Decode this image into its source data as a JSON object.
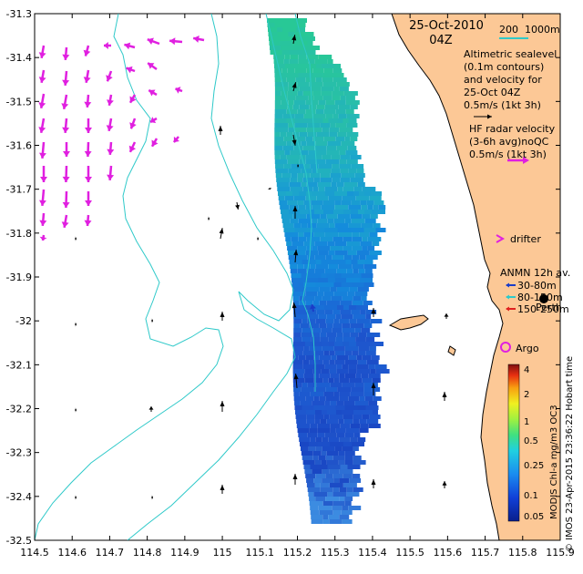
{
  "map": {
    "axes": {
      "x_ticks": [
        "114.5",
        "114.6",
        "114.7",
        "114.8",
        "114.9",
        "115",
        "115.1",
        "115.2",
        "115.3",
        "115.4",
        "115.5",
        "115.6",
        "115.7",
        "115.8",
        "115.9"
      ],
      "y_ticks": [
        "-31.3",
        "-31.4",
        "-31.5",
        "-31.6",
        "-31.7",
        "-31.8",
        "-31.9",
        "-32",
        "-32.1",
        "-32.2",
        "-32.3",
        "-32.4",
        "-32.5"
      ],
      "lon_range": [
        114.5,
        115.9
      ],
      "lat_range": [
        -32.5,
        -31.3
      ]
    },
    "title": {
      "date": "25-Oct-2010",
      "time": "04Z"
    },
    "isobath_legend": {
      "label1": "200",
      "label2": "1000m",
      "color": "#2ec9c9"
    },
    "altimetry_legend": {
      "line1": "Altimetric sealevel",
      "line2": "(0.1m contours)",
      "line3": "and velocity for",
      "line4": "25-Oct 04Z",
      "line5": "0.5m/s (1kt 3h)"
    },
    "hf_legend": {
      "line1": "HF radar velocity",
      "line2": "(3-6h avg)noQC",
      "line3": "0.5m/s (1kt 3h)"
    },
    "drifter_label": "drifter",
    "anmn": {
      "title": "ANMN 12h av.",
      "items": [
        {
          "label": "30-80m",
          "color": "#1a3cc8"
        },
        {
          "label": "80-150m",
          "color": "#2ec9c9"
        },
        {
          "label": "150-250m",
          "color": "#e02020"
        }
      ]
    },
    "city_label": "Perth",
    "argo_label": "Argo",
    "colorbar": {
      "labels": [
        "4",
        "2",
        "1",
        "0.5",
        "0.25",
        "0.1",
        "0.05"
      ],
      "title": "MODIS Chl-a mg/m3 OC3"
    },
    "credit": "© IMOS 23-Apr-2015 23:36:22 Hobart time",
    "colors": {
      "land": "#fcc896",
      "coast": "#000000",
      "isobath": "#2ec9c9",
      "hf_arrow": "#e020e0",
      "alt_arrow": "#000000"
    }
  }
}
